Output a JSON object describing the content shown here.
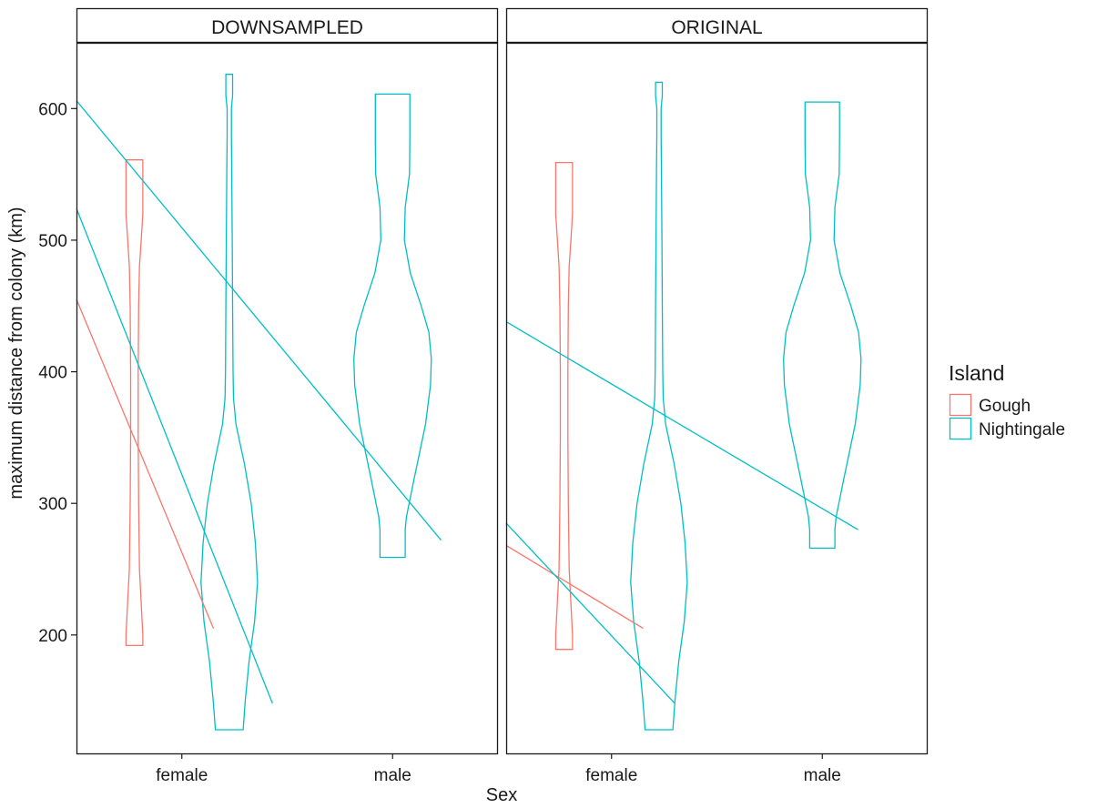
{
  "chart_data": {
    "type": "violin",
    "xlabel": "Sex",
    "ylabel": "maximum distance from colony (km)",
    "y_ticks": [
      200,
      300,
      400,
      500,
      600
    ],
    "categories": [
      "female",
      "male"
    ],
    "grid": false,
    "legend_position": "right",
    "legend": {
      "title": "Island",
      "entries": [
        {
          "name": "Gough",
          "color": "#F8766D"
        },
        {
          "name": "Nightingale",
          "color": "#00BFC4"
        }
      ]
    },
    "panels": [
      {
        "strip": "DOWNSAMPLED",
        "violins": [
          {
            "sex": "female",
            "island": "Gough",
            "min": 192,
            "max": 561,
            "profile": [
              [
                192,
                0.2
              ],
              [
                200,
                0.2
              ],
              [
                250,
                0.12
              ],
              [
                300,
                0.1
              ],
              [
                350,
                0.09
              ],
              [
                400,
                0.09
              ],
              [
                450,
                0.1
              ],
              [
                480,
                0.12
              ],
              [
                500,
                0.16
              ],
              [
                520,
                0.2
              ],
              [
                561,
                0.2
              ]
            ]
          },
          {
            "sex": "female",
            "island": "Nightingale",
            "min": 128,
            "max": 626,
            "profile": [
              [
                128,
                0.33
              ],
              [
                150,
                0.38
              ],
              [
                180,
                0.47
              ],
              [
                210,
                0.6
              ],
              [
                240,
                0.67
              ],
              [
                270,
                0.62
              ],
              [
                300,
                0.52
              ],
              [
                330,
                0.36
              ],
              [
                360,
                0.16
              ],
              [
                380,
                0.1
              ],
              [
                400,
                0.09
              ],
              [
                450,
                0.08
              ],
              [
                500,
                0.07
              ],
              [
                550,
                0.06
              ],
              [
                580,
                0.05
              ],
              [
                600,
                0.05
              ],
              [
                610,
                0.08
              ],
              [
                626,
                0.08
              ]
            ]
          },
          {
            "sex": "male",
            "island": "Nightingale",
            "min": 259,
            "max": 611,
            "profile": [
              [
                259,
                0.3
              ],
              [
                280,
                0.3
              ],
              [
                290,
                0.33
              ],
              [
                320,
                0.52
              ],
              [
                360,
                0.78
              ],
              [
                390,
                0.9
              ],
              [
                410,
                0.92
              ],
              [
                430,
                0.86
              ],
              [
                450,
                0.68
              ],
              [
                475,
                0.42
              ],
              [
                500,
                0.28
              ],
              [
                525,
                0.3
              ],
              [
                550,
                0.4
              ],
              [
                575,
                0.41
              ],
              [
                611,
                0.41
              ]
            ]
          }
        ],
        "lines": [
          {
            "island": "Gough",
            "x": [
              0.5,
              1.15
            ],
            "y": [
              455,
              205
            ]
          },
          {
            "island": "Nightingale",
            "x": [
              0.5,
              1.43
            ],
            "y": [
              524,
              148
            ]
          },
          {
            "island": "Nightingale",
            "x": [
              0.5,
              2.23
            ],
            "y": [
              606,
              272
            ]
          }
        ]
      },
      {
        "strip": "ORIGINAL",
        "violins": [
          {
            "sex": "female",
            "island": "Gough",
            "min": 189,
            "max": 559,
            "profile": [
              [
                189,
                0.2
              ],
              [
                200,
                0.2
              ],
              [
                250,
                0.12
              ],
              [
                300,
                0.1
              ],
              [
                350,
                0.09
              ],
              [
                400,
                0.09
              ],
              [
                450,
                0.1
              ],
              [
                480,
                0.12
              ],
              [
                500,
                0.16
              ],
              [
                520,
                0.2
              ],
              [
                559,
                0.2
              ]
            ]
          },
          {
            "sex": "female",
            "island": "Nightingale",
            "min": 128,
            "max": 620,
            "profile": [
              [
                128,
                0.33
              ],
              [
                150,
                0.38
              ],
              [
                180,
                0.47
              ],
              [
                210,
                0.6
              ],
              [
                240,
                0.67
              ],
              [
                270,
                0.62
              ],
              [
                300,
                0.52
              ],
              [
                330,
                0.36
              ],
              [
                360,
                0.16
              ],
              [
                380,
                0.1
              ],
              [
                400,
                0.09
              ],
              [
                450,
                0.08
              ],
              [
                500,
                0.07
              ],
              [
                550,
                0.06
              ],
              [
                580,
                0.05
              ],
              [
                600,
                0.05
              ],
              [
                610,
                0.08
              ],
              [
                620,
                0.08
              ]
            ]
          },
          {
            "sex": "male",
            "island": "Nightingale",
            "min": 266,
            "max": 605,
            "profile": [
              [
                266,
                0.3
              ],
              [
                280,
                0.3
              ],
              [
                290,
                0.33
              ],
              [
                320,
                0.52
              ],
              [
                360,
                0.78
              ],
              [
                390,
                0.9
              ],
              [
                410,
                0.92
              ],
              [
                430,
                0.86
              ],
              [
                450,
                0.68
              ],
              [
                475,
                0.42
              ],
              [
                500,
                0.28
              ],
              [
                525,
                0.3
              ],
              [
                550,
                0.4
              ],
              [
                575,
                0.41
              ],
              [
                605,
                0.41
              ]
            ]
          }
        ],
        "lines": [
          {
            "island": "Gough",
            "x": [
              0.5,
              1.15
            ],
            "y": [
              268,
              205
            ]
          },
          {
            "island": "Nightingale",
            "x": [
              0.5,
              1.3
            ],
            "y": [
              285,
              148
            ]
          },
          {
            "island": "Nightingale",
            "x": [
              0.5,
              2.17
            ],
            "y": [
              438,
              280
            ]
          }
        ]
      }
    ]
  }
}
